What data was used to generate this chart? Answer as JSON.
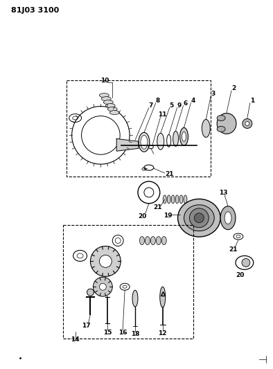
{
  "title": "81J03 3100",
  "bg_color": "#ffffff",
  "fig_width": 3.94,
  "fig_height": 5.33,
  "dpi": 100
}
